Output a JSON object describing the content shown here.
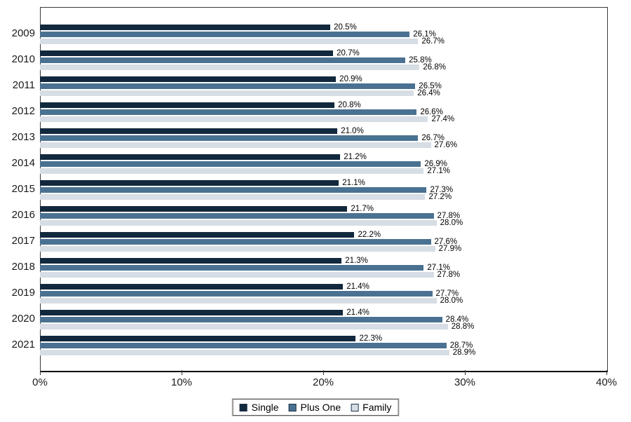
{
  "chart_data": {
    "type": "bar",
    "orientation": "horizontal",
    "title": "",
    "xlabel": "",
    "ylabel": "",
    "categories": [
      "2009",
      "2010",
      "2011",
      "2012",
      "2013",
      "2014",
      "2015",
      "2016",
      "2017",
      "2018",
      "2019",
      "2020",
      "2021"
    ],
    "series": [
      {
        "name": "Single",
        "color": "#12283d",
        "values": [
          20.5,
          20.7,
          20.9,
          20.8,
          21.0,
          21.2,
          21.1,
          21.7,
          22.2,
          21.3,
          21.4,
          21.4,
          22.3
        ]
      },
      {
        "name": "Plus One",
        "color": "#4a7191",
        "values": [
          26.1,
          25.8,
          26.5,
          26.6,
          26.7,
          26.9,
          27.3,
          27.8,
          27.6,
          27.1,
          27.7,
          28.4,
          28.7
        ]
      },
      {
        "name": "Family",
        "color": "#d7dde4",
        "values": [
          26.7,
          26.8,
          26.4,
          27.4,
          27.6,
          27.1,
          27.2,
          28.0,
          27.9,
          27.8,
          28.0,
          28.8,
          28.9
        ]
      }
    ],
    "value_labels": [
      [
        "20.5%",
        "20.7%",
        "20.9%",
        "20.8%",
        "21.0%",
        "21.2%",
        "21.1%",
        "21.7%",
        "22.2%",
        "21.3%",
        "21.4%",
        "21.4%",
        "22.3%"
      ],
      [
        "26.1%",
        "25.8%",
        "26.5%",
        "26.6%",
        "26.7%",
        "26.9%",
        "27.3%",
        "27.8%",
        "27.6%",
        "27.1%",
        "27.7%",
        "28.4%",
        "28.7%"
      ],
      [
        "26.7%",
        "26.8%",
        "26.4%",
        "27.4%",
        "27.6%",
        "27.1%",
        "27.2%",
        "28.0%",
        "27.9%",
        "27.8%",
        "28.0%",
        "28.8%",
        "28.9%"
      ]
    ],
    "xlim": [
      0,
      40
    ],
    "x_ticks": [
      0,
      10,
      20,
      30,
      40
    ],
    "x_tick_labels": [
      "0%",
      "10%",
      "20%",
      "30%",
      "40%"
    ],
    "grid": false,
    "legend_position": "bottom",
    "legend_entries": [
      "Single",
      "Plus One",
      "Family"
    ]
  }
}
